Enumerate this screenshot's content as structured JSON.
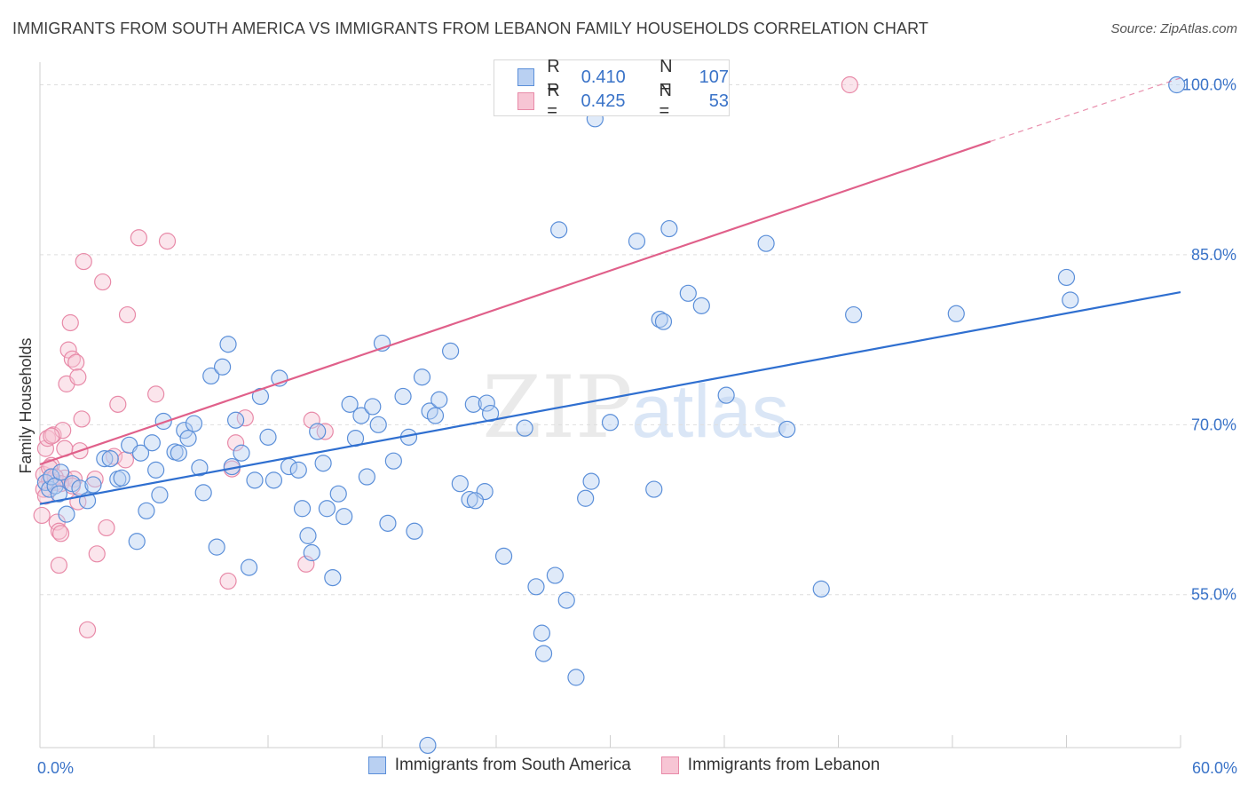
{
  "title": "IMMIGRANTS FROM SOUTH AMERICA VS IMMIGRANTS FROM LEBANON FAMILY HOUSEHOLDS CORRELATION CHART",
  "source": "Source: ZipAtlas.com",
  "watermark": {
    "zip": "ZIP",
    "atlas": "atlas"
  },
  "legend": {
    "r_label": "R =",
    "n_label": "N =",
    "rows": [
      {
        "r": "0.410",
        "n": "107",
        "color": "#5b8fd9",
        "fill": "#b9d0f2"
      },
      {
        "r": "0.425",
        "n": "53",
        "color": "#e88aa8",
        "fill": "#f7c5d4"
      }
    ]
  },
  "chart_data": {
    "type": "scatter",
    "title": "IMMIGRANTS FROM SOUTH AMERICA VS IMMIGRANTS FROM LEBANON FAMILY HOUSEHOLDS CORRELATION CHART",
    "xlabel": "",
    "ylabel": "Family Households",
    "xlim": [
      0,
      60
    ],
    "ylim": [
      41.5,
      102
    ],
    "x_tick_labels": [
      "0.0%",
      "60.0%"
    ],
    "y_ticks": [
      55,
      70,
      85,
      100
    ],
    "y_tick_labels": [
      "55.0%",
      "70.0%",
      "85.0%",
      "100.0%"
    ],
    "grid": "horizontal dashed",
    "legend_position": "top-center",
    "series": [
      {
        "name": "Immigrants from South America",
        "color": "#5b8fd9",
        "fill": "#b9d0f2",
        "line_color": "#2f6fd0",
        "trend": {
          "x": [
            0,
            60
          ],
          "y": [
            63.0,
            81.7
          ]
        },
        "points": [
          [
            0.3,
            64.9
          ],
          [
            0.5,
            64.3
          ],
          [
            0.6,
            65.4
          ],
          [
            0.8,
            64.6
          ],
          [
            1.0,
            63.9
          ],
          [
            1.1,
            65.8
          ],
          [
            1.4,
            62.1
          ],
          [
            1.7,
            64.8
          ],
          [
            2.1,
            64.4
          ],
          [
            2.5,
            63.3
          ],
          [
            2.8,
            64.7
          ],
          [
            3.4,
            67.0
          ],
          [
            3.7,
            67.0
          ],
          [
            4.1,
            65.2
          ],
          [
            4.3,
            65.3
          ],
          [
            4.7,
            68.2
          ],
          [
            5.1,
            59.7
          ],
          [
            5.3,
            67.5
          ],
          [
            5.6,
            62.4
          ],
          [
            5.9,
            68.4
          ],
          [
            6.1,
            66.0
          ],
          [
            6.3,
            63.8
          ],
          [
            6.5,
            70.3
          ],
          [
            7.1,
            67.6
          ],
          [
            7.3,
            67.5
          ],
          [
            7.6,
            69.5
          ],
          [
            7.8,
            68.8
          ],
          [
            8.1,
            70.1
          ],
          [
            8.4,
            66.2
          ],
          [
            8.6,
            64.0
          ],
          [
            9.0,
            74.3
          ],
          [
            9.3,
            59.2
          ],
          [
            9.6,
            75.1
          ],
          [
            9.9,
            77.1
          ],
          [
            10.1,
            66.3
          ],
          [
            10.3,
            70.4
          ],
          [
            10.6,
            67.5
          ],
          [
            11.0,
            57.4
          ],
          [
            11.3,
            65.1
          ],
          [
            11.6,
            72.5
          ],
          [
            12.0,
            68.9
          ],
          [
            12.3,
            65.1
          ],
          [
            12.6,
            74.1
          ],
          [
            13.1,
            66.3
          ],
          [
            13.6,
            66.0
          ],
          [
            13.8,
            62.6
          ],
          [
            14.1,
            60.2
          ],
          [
            14.3,
            58.7
          ],
          [
            14.6,
            69.4
          ],
          [
            14.9,
            66.6
          ],
          [
            15.1,
            62.6
          ],
          [
            15.4,
            56.5
          ],
          [
            15.7,
            63.9
          ],
          [
            16.0,
            61.9
          ],
          [
            16.3,
            71.8
          ],
          [
            16.6,
            68.8
          ],
          [
            16.9,
            70.8
          ],
          [
            17.2,
            65.4
          ],
          [
            17.5,
            71.6
          ],
          [
            17.8,
            70.0
          ],
          [
            18.0,
            77.2
          ],
          [
            18.3,
            61.3
          ],
          [
            18.6,
            66.8
          ],
          [
            19.1,
            72.5
          ],
          [
            19.4,
            68.9
          ],
          [
            19.7,
            60.6
          ],
          [
            20.1,
            74.2
          ],
          [
            20.5,
            71.2
          ],
          [
            20.8,
            70.8
          ],
          [
            21.0,
            72.2
          ],
          [
            21.6,
            76.5
          ],
          [
            22.1,
            64.8
          ],
          [
            22.6,
            63.4
          ],
          [
            22.8,
            71.8
          ],
          [
            23.4,
            64.1
          ],
          [
            23.5,
            71.9
          ],
          [
            23.7,
            71.0
          ],
          [
            24.4,
            58.4
          ],
          [
            25.5,
            69.7
          ],
          [
            26.1,
            55.7
          ],
          [
            26.4,
            51.6
          ],
          [
            26.5,
            49.8
          ],
          [
            27.1,
            56.7
          ],
          [
            27.7,
            54.5
          ],
          [
            28.2,
            47.7
          ],
          [
            28.7,
            63.5
          ],
          [
            29.0,
            65.0
          ],
          [
            30.0,
            70.2
          ],
          [
            31.4,
            86.2
          ],
          [
            32.3,
            64.3
          ],
          [
            32.6,
            79.3
          ],
          [
            32.8,
            79.1
          ],
          [
            33.1,
            87.3
          ],
          [
            34.1,
            81.6
          ],
          [
            34.8,
            80.5
          ],
          [
            36.1,
            72.6
          ],
          [
            38.2,
            86.0
          ],
          [
            39.3,
            69.6
          ],
          [
            41.1,
            55.5
          ],
          [
            42.8,
            79.7
          ],
          [
            48.2,
            79.8
          ],
          [
            54.0,
            83.0
          ],
          [
            54.2,
            81.0
          ],
          [
            59.8,
            100.0
          ],
          [
            27.3,
            87.2
          ],
          [
            20.4,
            41.7
          ],
          [
            29.2,
            97.0
          ],
          [
            28.9,
            100.0
          ],
          [
            22.9,
            63.3
          ]
        ]
      },
      {
        "name": "Immigrants from Lebanon",
        "color": "#e88aa8",
        "fill": "#f7c5d4",
        "line_color": "#e0608a",
        "trend": {
          "x": [
            0,
            50
          ],
          "y": [
            66.5,
            95.0
          ]
        },
        "trend_dashed": {
          "x": [
            50,
            60
          ],
          "y": [
            95.0,
            100.6
          ]
        },
        "points": [
          [
            0.1,
            62.0
          ],
          [
            0.2,
            65.6
          ],
          [
            0.3,
            67.9
          ],
          [
            0.4,
            68.8
          ],
          [
            0.5,
            65.1
          ],
          [
            0.6,
            66.4
          ],
          [
            0.7,
            69.1
          ],
          [
            0.8,
            64.9
          ],
          [
            0.9,
            61.4
          ],
          [
            1.0,
            60.6
          ],
          [
            1.1,
            60.4
          ],
          [
            1.2,
            69.5
          ],
          [
            1.3,
            65.3
          ],
          [
            1.4,
            73.6
          ],
          [
            1.5,
            76.6
          ],
          [
            1.6,
            79.0
          ],
          [
            1.7,
            75.8
          ],
          [
            1.8,
            65.2
          ],
          [
            1.9,
            75.5
          ],
          [
            2.0,
            74.2
          ],
          [
            2.1,
            67.7
          ],
          [
            2.2,
            70.5
          ],
          [
            2.3,
            84.4
          ],
          [
            2.5,
            51.9
          ],
          [
            2.9,
            65.2
          ],
          [
            3.0,
            58.6
          ],
          [
            3.3,
            82.6
          ],
          [
            3.5,
            60.9
          ],
          [
            3.9,
            67.2
          ],
          [
            4.1,
            71.8
          ],
          [
            4.5,
            66.9
          ],
          [
            4.6,
            79.7
          ],
          [
            5.2,
            86.5
          ],
          [
            6.1,
            72.7
          ],
          [
            6.7,
            86.2
          ],
          [
            9.9,
            56.2
          ],
          [
            10.1,
            66.1
          ],
          [
            10.3,
            68.4
          ],
          [
            10.8,
            70.6
          ],
          [
            14.0,
            57.7
          ],
          [
            14.3,
            70.4
          ],
          [
            15.0,
            69.4
          ],
          [
            42.6,
            100.0
          ],
          [
            0.2,
            64.3
          ],
          [
            0.5,
            66.2
          ],
          [
            0.8,
            65.4
          ],
          [
            1.1,
            64.8
          ],
          [
            1.3,
            67.9
          ],
          [
            0.3,
            63.7
          ],
          [
            0.6,
            69.0
          ],
          [
            1.0,
            57.6
          ],
          [
            1.7,
            64.6
          ],
          [
            2.0,
            63.2
          ]
        ]
      }
    ]
  }
}
